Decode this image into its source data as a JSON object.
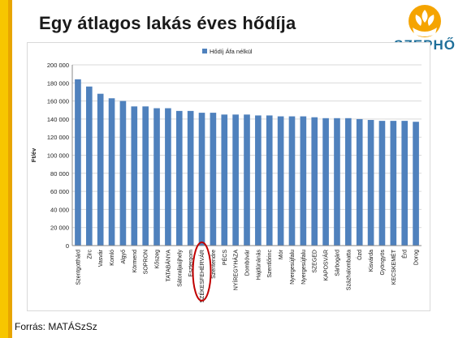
{
  "slide": {
    "title": "Egy átlagos lakás éves hődíja",
    "source": "Forrás: MATÁSzSz",
    "logo_text": "SZEPHŐ"
  },
  "colors": {
    "bar": "#4f81bd",
    "highlight_circle": "#c00000",
    "accent_yellow": "#f7c600",
    "logo_blue": "#1f6f9a"
  },
  "chart_data": {
    "type": "bar",
    "title": "",
    "xlabel": "",
    "ylabel": "Ft/év",
    "ylim": [
      0,
      200000
    ],
    "yticks": [
      "0",
      "20 000",
      "40 000",
      "60 000",
      "80 000",
      "100 000",
      "120 000",
      "140 000",
      "160 000",
      "180 000",
      "200 000"
    ],
    "grid": true,
    "legend_position": "top-center",
    "highlighted_category": "SZÉKESFEHÉRVÁR",
    "categories": [
      "Szentgotthárd",
      "Zirc",
      "Vasvár",
      "Komló",
      "Algyő",
      "Körmend",
      "SOPRON",
      "Kőszeg",
      "TATABÁNYA",
      "Sátoraljaújhely",
      "Esztergom",
      "SZÉKESFEHÉRVÁR",
      "Szentendre",
      "PÉCS",
      "NYÍREGYHÁZA",
      "Dombóvár",
      "Hajdúnánás",
      "Szentlőrinc",
      "Mór",
      "Nyergesújfalu",
      "Nyergesújfalu",
      "SZEGED",
      "KAPOSVÁR",
      "Sárbogárd",
      "Százhalombatta",
      "Ózd",
      "Kisvárda",
      "Gyöngyös",
      "KECSKEMÉT",
      "Érd",
      "Dorog"
    ],
    "series": [
      {
        "name": "Hődíj Áfa nélkül",
        "values": [
          184000,
          176000,
          168000,
          163000,
          160000,
          154000,
          154000,
          152000,
          152000,
          149000,
          149000,
          147000,
          147000,
          145000,
          145000,
          145000,
          144000,
          144000,
          143000,
          143000,
          143000,
          142000,
          141000,
          141000,
          141000,
          140000,
          139000,
          138000,
          138000,
          138000,
          137000
        ]
      }
    ]
  }
}
